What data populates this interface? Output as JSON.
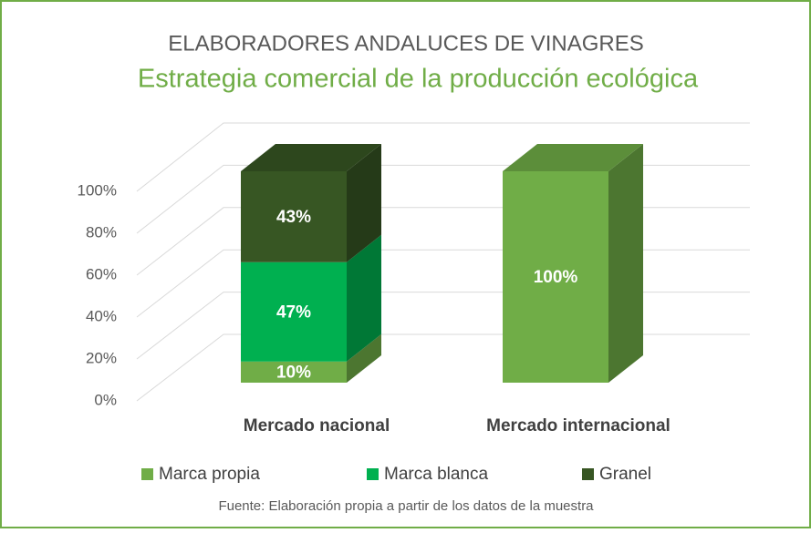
{
  "chart_data": {
    "type": "bar3d_stacked",
    "title": "ELABORADORES  ANDALUCES DE VINAGRES",
    "subtitle": "Estrategia comercial de la producción ecológica",
    "source": "Fuente: Elaboración propia a partir de los datos de la muestra",
    "categories": [
      "Mercado nacional",
      "Mercado internacional"
    ],
    "series": [
      {
        "name": "Marca propia",
        "color": "#70ad47",
        "values": [
          10,
          100
        ],
        "value_labels": [
          "10%",
          "100%"
        ]
      },
      {
        "name": "Marca blanca",
        "color": "#00b050",
        "values": [
          47,
          null
        ],
        "value_labels": [
          "47%",
          null
        ]
      },
      {
        "name": "Granel",
        "color": "#375623",
        "values": [
          43,
          null
        ],
        "value_labels": [
          "43%",
          null
        ]
      }
    ],
    "ylim": [
      0,
      100
    ],
    "yticks": [
      {
        "value": 0,
        "label": "0%"
      },
      {
        "value": 20,
        "label": "20%"
      },
      {
        "value": 40,
        "label": "40%"
      },
      {
        "value": 60,
        "label": "60%"
      },
      {
        "value": 80,
        "label": "80%"
      },
      {
        "value": 100,
        "label": "100%"
      }
    ],
    "grid": true,
    "legend": "bottom"
  }
}
